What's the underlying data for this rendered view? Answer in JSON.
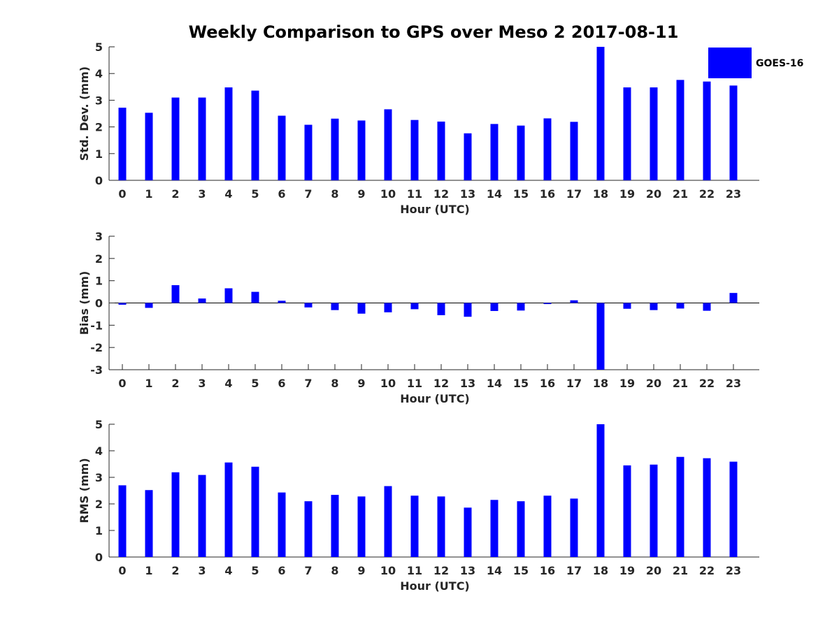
{
  "figure": {
    "title": "Weekly Comparison to GPS over Meso 2 2017-08-11",
    "legend": {
      "label": "GOES-16",
      "color": "#0000ff",
      "location": "top-right"
    }
  },
  "chart_data": [
    {
      "type": "bar",
      "name": "std-dev",
      "xlabel": "Hour (UTC)",
      "ylabel": "Std. Dev. (mm)",
      "ylim": [
        0,
        5
      ],
      "yticks": [
        0,
        1,
        2,
        3,
        4,
        5
      ],
      "categories": [
        "0",
        "1",
        "2",
        "3",
        "4",
        "5",
        "6",
        "7",
        "8",
        "9",
        "10",
        "11",
        "12",
        "13",
        "14",
        "15",
        "16",
        "17",
        "18",
        "19",
        "20",
        "21",
        "22",
        "23"
      ],
      "series": [
        {
          "name": "GOES-16",
          "color": "#0000ff",
          "values": [
            2.72,
            2.53,
            3.1,
            3.1,
            3.48,
            3.36,
            2.42,
            2.08,
            2.31,
            2.24,
            2.66,
            2.26,
            2.2,
            1.76,
            2.11,
            2.05,
            2.32,
            2.19,
            5.0,
            3.48,
            3.48,
            3.76,
            3.7,
            3.55
          ]
        }
      ]
    },
    {
      "type": "bar",
      "name": "bias",
      "xlabel": "Hour (UTC)",
      "ylabel": "Bias (mm)",
      "ylim": [
        -3,
        3
      ],
      "yticks": [
        -3,
        -2,
        -1,
        0,
        1,
        2,
        3
      ],
      "categories": [
        "0",
        "1",
        "2",
        "3",
        "4",
        "5",
        "6",
        "7",
        "8",
        "9",
        "10",
        "11",
        "12",
        "13",
        "14",
        "15",
        "16",
        "17",
        "18",
        "19",
        "20",
        "21",
        "22",
        "23"
      ],
      "series": [
        {
          "name": "GOES-16",
          "color": "#0000ff",
          "values": [
            -0.08,
            -0.22,
            0.8,
            0.2,
            0.66,
            0.5,
            0.1,
            -0.2,
            -0.32,
            -0.48,
            -0.42,
            -0.28,
            -0.55,
            -0.62,
            -0.36,
            -0.34,
            -0.05,
            0.12,
            -3.0,
            -0.26,
            -0.32,
            -0.25,
            -0.35,
            0.45
          ]
        }
      ]
    },
    {
      "type": "bar",
      "name": "rms",
      "xlabel": "Hour (UTC)",
      "ylabel": "RMS (mm)",
      "ylim": [
        0,
        5
      ],
      "yticks": [
        0,
        1,
        2,
        3,
        4,
        5
      ],
      "categories": [
        "0",
        "1",
        "2",
        "3",
        "4",
        "5",
        "6",
        "7",
        "8",
        "9",
        "10",
        "11",
        "12",
        "13",
        "14",
        "15",
        "16",
        "17",
        "18",
        "19",
        "20",
        "21",
        "22",
        "23"
      ],
      "series": [
        {
          "name": "GOES-16",
          "color": "#0000ff",
          "values": [
            2.7,
            2.52,
            3.19,
            3.09,
            3.56,
            3.4,
            2.43,
            2.1,
            2.34,
            2.28,
            2.67,
            2.31,
            2.28,
            1.86,
            2.15,
            2.1,
            2.31,
            2.2,
            5.0,
            3.45,
            3.48,
            3.77,
            3.72,
            3.59
          ]
        }
      ]
    }
  ]
}
